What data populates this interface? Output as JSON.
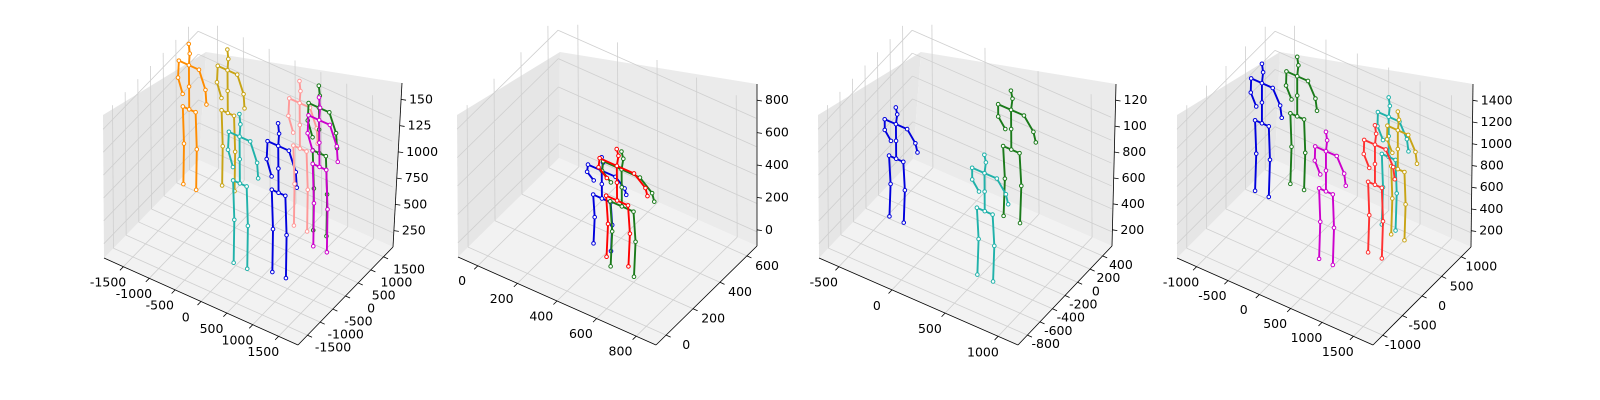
{
  "figure": {
    "type": "3d-pose-skeleton-panels",
    "background": "#ffffff",
    "pane_colors": [
      "#f2f2f2",
      "#e6e6e6",
      "#ebebeb"
    ],
    "grid_color": "#cfcfcf"
  },
  "chart_data": [
    {
      "type": "scatter",
      "subtype": "3d-skeletons",
      "xlim": [
        -1750,
        1750
      ],
      "ylim": [
        -1750,
        1750
      ],
      "zlim": [
        100,
        1650
      ],
      "x_ticks": [
        "-1500",
        "-1000",
        "-500",
        "0",
        "500",
        "1000",
        "1500"
      ],
      "y_ticks": [
        "-1500",
        "-1000",
        "-500",
        "0",
        "500",
        "1000",
        "1500"
      ],
      "z_ticks": [
        "250",
        "500",
        "750",
        "1000",
        "125",
        "150"
      ],
      "skeletons": [
        {
          "color": "#ff8c00",
          "x": -1500,
          "y": 900,
          "height": 1650
        },
        {
          "color": "#c8a415",
          "x": -1000,
          "y": 1300,
          "height": 1600
        },
        {
          "color": "#20b2aa",
          "x": 100,
          "y": -500,
          "height": 1750
        },
        {
          "color": "#0000dd",
          "x": 700,
          "y": -300,
          "height": 1750
        },
        {
          "color": "#ff9999",
          "x": 400,
          "y": 1100,
          "height": 1700
        },
        {
          "color": "#1a7a1a",
          "x": 700,
          "y": 1200,
          "height": 1700
        },
        {
          "color": "#cc00cc",
          "x": 900,
          "y": 800,
          "height": 1750
        }
      ]
    },
    {
      "type": "scatter",
      "subtype": "3d-skeletons",
      "xlim": [
        -50,
        900
      ],
      "ylim": [
        -150,
        750
      ],
      "zlim": [
        -20,
        870
      ],
      "x_ticks": [
        "0",
        "200",
        "400",
        "600",
        "800"
      ],
      "y_ticks": [
        "0",
        "200",
        "400",
        "600"
      ],
      "z_ticks": [
        "0",
        "200",
        "400",
        "600",
        "800"
      ],
      "skeletons": [
        {
          "color": "#0000dd",
          "x": 400,
          "y": 300,
          "height": 600
        },
        {
          "color": "#1a7a1a",
          "x": 550,
          "y": 200,
          "height": 800
        },
        {
          "color": "#ff0000",
          "x": 500,
          "y": 250,
          "height": 750
        }
      ]
    },
    {
      "type": "scatter",
      "subtype": "3d-skeletons",
      "xlim": [
        -800,
        1150
      ],
      "ylim": [
        -900,
        500
      ],
      "zlim": [
        50,
        1250
      ],
      "x_ticks": [
        "-500",
        "0",
        "500",
        "1000"
      ],
      "y_ticks": [
        "-800",
        "-600",
        "-400",
        "-200",
        "0",
        "200",
        "400"
      ],
      "z_ticks": [
        "200",
        "400",
        "600",
        "800",
        "100",
        "120"
      ],
      "skeletons": [
        {
          "color": "#0000dd",
          "x": -500,
          "y": -200,
          "height": 1000
        },
        {
          "color": "#1a7a1a",
          "x": 300,
          "y": 300,
          "height": 1150
        },
        {
          "color": "#20b2aa",
          "x": 500,
          "y": -400,
          "height": 1100
        }
      ]
    },
    {
      "type": "scatter",
      "subtype": "3d-skeletons",
      "xlim": [
        -1250,
        1750
      ],
      "ylim": [
        -1250,
        1250
      ],
      "zlim": [
        50,
        1600
      ],
      "x_ticks": [
        "-1000",
        "-500",
        "0",
        "500",
        "1000",
        "1500"
      ],
      "y_ticks": [
        "-1000",
        "-500",
        "0",
        "500",
        "1000"
      ],
      "z_ticks": [
        "200",
        "400",
        "600",
        "800",
        "1000",
        "1200",
        "1400"
      ],
      "skeletons": [
        {
          "color": "#0000dd",
          "x": -1000,
          "y": 500,
          "height": 1500
        },
        {
          "color": "#1a7a1a",
          "x": -700,
          "y": 900,
          "height": 1500
        },
        {
          "color": "#20b2aa",
          "x": 700,
          "y": 900,
          "height": 1500
        },
        {
          "color": "#c8a415",
          "x": 900,
          "y": 800,
          "height": 1450
        },
        {
          "color": "#cc00cc",
          "x": 400,
          "y": -200,
          "height": 1500
        },
        {
          "color": "#ff3030",
          "x": 850,
          "y": 300,
          "height": 1500
        }
      ]
    }
  ]
}
